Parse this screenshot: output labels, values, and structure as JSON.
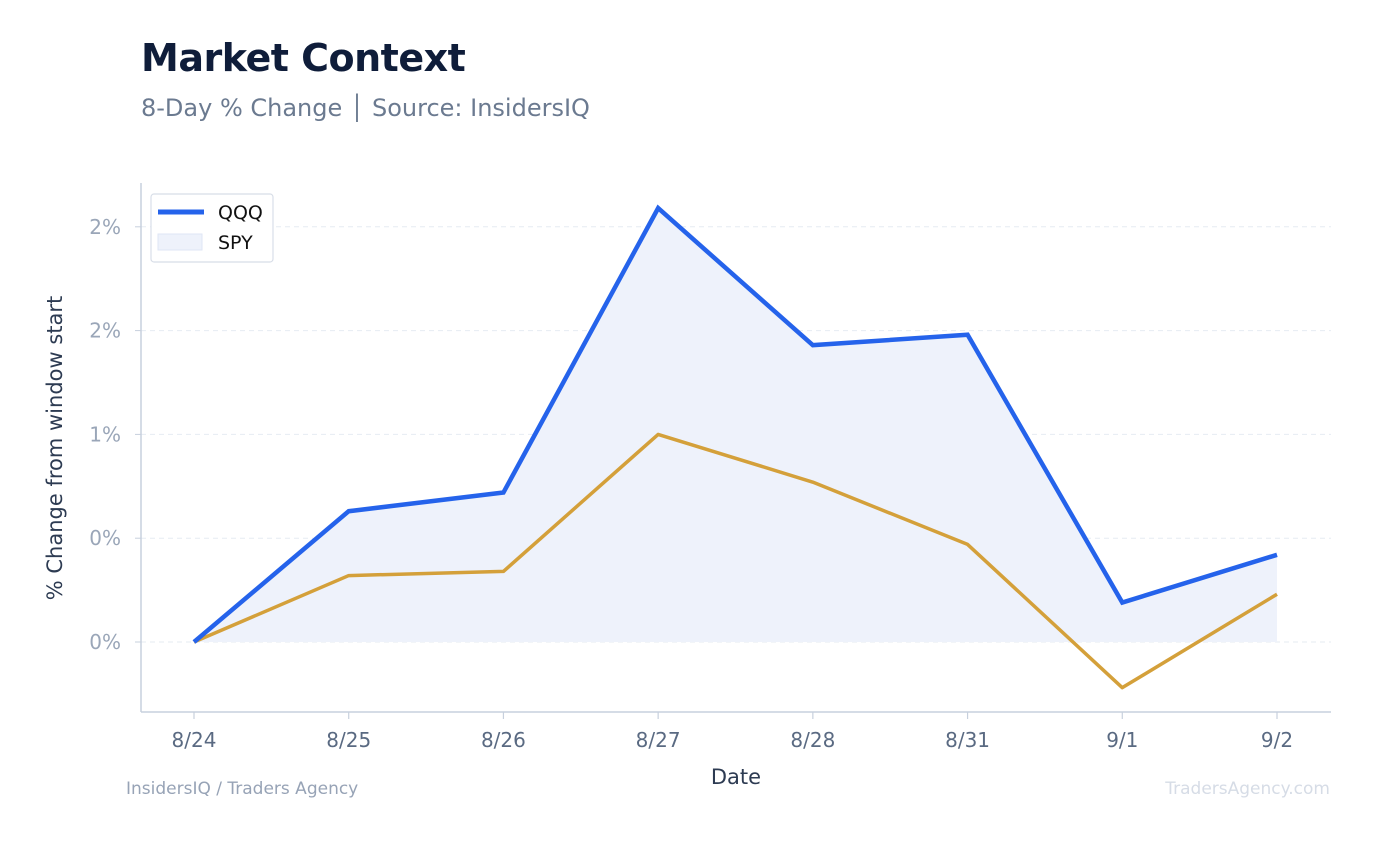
{
  "header": {
    "title": "Market Context",
    "subtitle": "8-Day % Change │ Source: InsidersIQ"
  },
  "footer": {
    "left": "InsidersIQ / Traders Agency",
    "right": "TradersAgency.com"
  },
  "colors": {
    "qqq": "#2563eb",
    "spy": "#d4a03a",
    "fill": "#eef2fb",
    "grid": "#e6ebf2",
    "axis": "#c7d0dd"
  },
  "chart_data": {
    "type": "line",
    "xlabel": "Date",
    "ylabel": "% Change from window start",
    "categories": [
      "8/24",
      "8/25",
      "8/26",
      "8/27",
      "8/28",
      "8/31",
      "9/1",
      "9/2"
    ],
    "y_ticks": [
      {
        "value": 0.0,
        "label": "0%"
      },
      {
        "value": 0.5,
        "label": "0%"
      },
      {
        "value": 1.0,
        "label": "1%"
      },
      {
        "value": 1.5,
        "label": "2%"
      },
      {
        "value": 2.0,
        "label": "2%"
      }
    ],
    "ylim": [
      -0.34,
      2.21
    ],
    "grid": true,
    "legend_position": "top-left",
    "series": [
      {
        "name": "QQQ",
        "style": "line",
        "values": [
          0.0,
          0.63,
          0.72,
          2.09,
          1.43,
          1.48,
          0.19,
          0.42
        ]
      },
      {
        "name": "SPY",
        "style": "area",
        "values": [
          0.0,
          0.32,
          0.34,
          1.0,
          0.77,
          0.47,
          -0.22,
          0.23
        ]
      }
    ]
  }
}
